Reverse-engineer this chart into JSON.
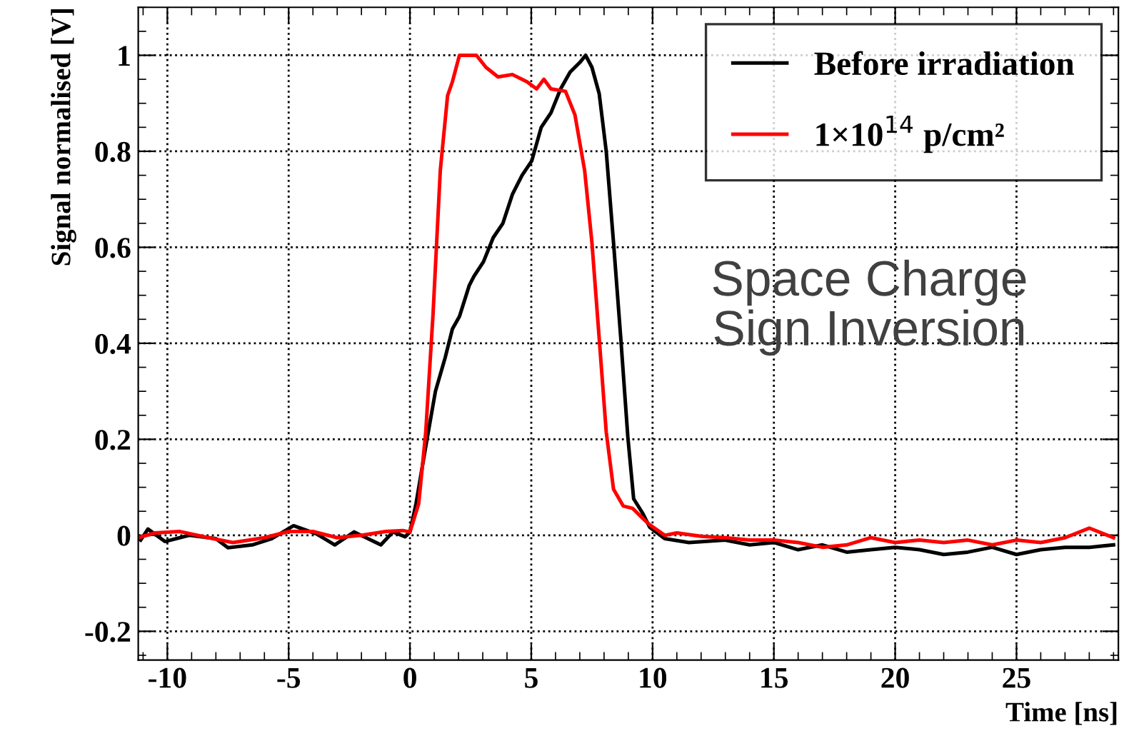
{
  "chart_data": {
    "type": "line",
    "xlabel": "Time [ns]",
    "ylabel": "Signal normalised [V]",
    "xlim": [
      -11.2,
      29.2
    ],
    "ylim": [
      -0.26,
      1.1
    ],
    "xticks": [
      -10,
      -5,
      0,
      5,
      10,
      15,
      20,
      25
    ],
    "yticks": [
      -0.2,
      0,
      0.2,
      0.4,
      0.6,
      0.8,
      1
    ],
    "grid": true,
    "legend": "top right",
    "line_style": "solid",
    "marker": "none",
    "annotations": [
      "Space Charge\nSign Inversion"
    ],
    "series": [
      {
        "name": "Before irradiation",
        "color": "#000000",
        "x": [
          -11.1,
          -10.8,
          -10.1,
          -9.1,
          -8.0,
          -7.5,
          -6.5,
          -5.7,
          -4.8,
          -3.85,
          -3.1,
          -2.3,
          -1.2,
          -0.7,
          -0.2,
          0,
          0.25,
          0.65,
          1.05,
          1.45,
          1.75,
          2.04,
          2.44,
          2.64,
          3.03,
          3.43,
          3.83,
          4.22,
          4.62,
          5.02,
          5.41,
          5.81,
          6.21,
          6.6,
          7.0,
          7.24,
          7.5,
          7.8,
          8.09,
          8.39,
          8.69,
          8.98,
          9.22,
          9.58,
          9.88,
          10.5,
          11.5,
          13,
          14,
          15,
          16,
          17,
          18,
          19,
          20,
          21,
          22,
          23,
          24,
          25,
          26,
          27,
          28,
          29
        ],
        "values": [
          -0.01,
          0.013,
          -0.013,
          0,
          -0.007,
          -0.026,
          -0.02,
          -0.007,
          0.02,
          0.003,
          -0.02,
          0.007,
          -0.02,
          0.007,
          -0.003,
          0.007,
          0.066,
          0.185,
          0.3,
          0.37,
          0.43,
          0.456,
          0.52,
          0.54,
          0.57,
          0.62,
          0.65,
          0.71,
          0.75,
          0.78,
          0.85,
          0.88,
          0.93,
          0.965,
          0.985,
          1.0,
          0.975,
          0.92,
          0.8,
          0.61,
          0.41,
          0.205,
          0.076,
          0.047,
          0.017,
          -0.007,
          -0.015,
          -0.01,
          -0.02,
          -0.015,
          -0.03,
          -0.02,
          -0.035,
          -0.03,
          -0.025,
          -0.03,
          -0.04,
          -0.035,
          -0.025,
          -0.04,
          -0.03,
          -0.025,
          -0.025,
          -0.02
        ]
      },
      {
        "name": "1×10$^{14}$ p/cm²",
        "color": "#ff0000",
        "x": [
          -11.2,
          -10.5,
          -9.5,
          -8.3,
          -7.3,
          -6.0,
          -5.0,
          -4.0,
          -3.0,
          -2.0,
          -1.0,
          -0.3,
          0,
          0.36,
          0.65,
          0.95,
          1.25,
          1.55,
          1.75,
          2.04,
          2.74,
          3.13,
          3.63,
          4.22,
          4.82,
          5.22,
          5.52,
          5.81,
          6.41,
          6.8,
          7.2,
          7.5,
          7.8,
          8.09,
          8.39,
          8.79,
          9.18,
          9.58,
          9.88,
          10.5,
          11,
          12,
          13,
          14,
          15,
          16,
          17,
          18,
          19,
          20,
          21,
          22,
          23,
          24,
          25,
          26,
          27,
          28,
          29
        ],
        "values": [
          -0.005,
          0.005,
          0.008,
          -0.005,
          -0.015,
          -0.005,
          0.008,
          0.008,
          -0.005,
          0.0,
          0.008,
          0.01,
          0.007,
          0.066,
          0.215,
          0.46,
          0.76,
          0.916,
          0.945,
          1.0,
          1.0,
          0.975,
          0.955,
          0.96,
          0.945,
          0.93,
          0.95,
          0.93,
          0.925,
          0.876,
          0.76,
          0.61,
          0.41,
          0.215,
          0.096,
          0.061,
          0.056,
          0.036,
          0.022,
          0.0,
          0.005,
          -0.002,
          -0.005,
          -0.01,
          -0.01,
          -0.015,
          -0.025,
          -0.02,
          -0.005,
          -0.015,
          -0.01,
          -0.015,
          -0.01,
          -0.02,
          -0.01,
          -0.015,
          -0.005,
          0.015,
          -0.005
        ]
      }
    ]
  }
}
